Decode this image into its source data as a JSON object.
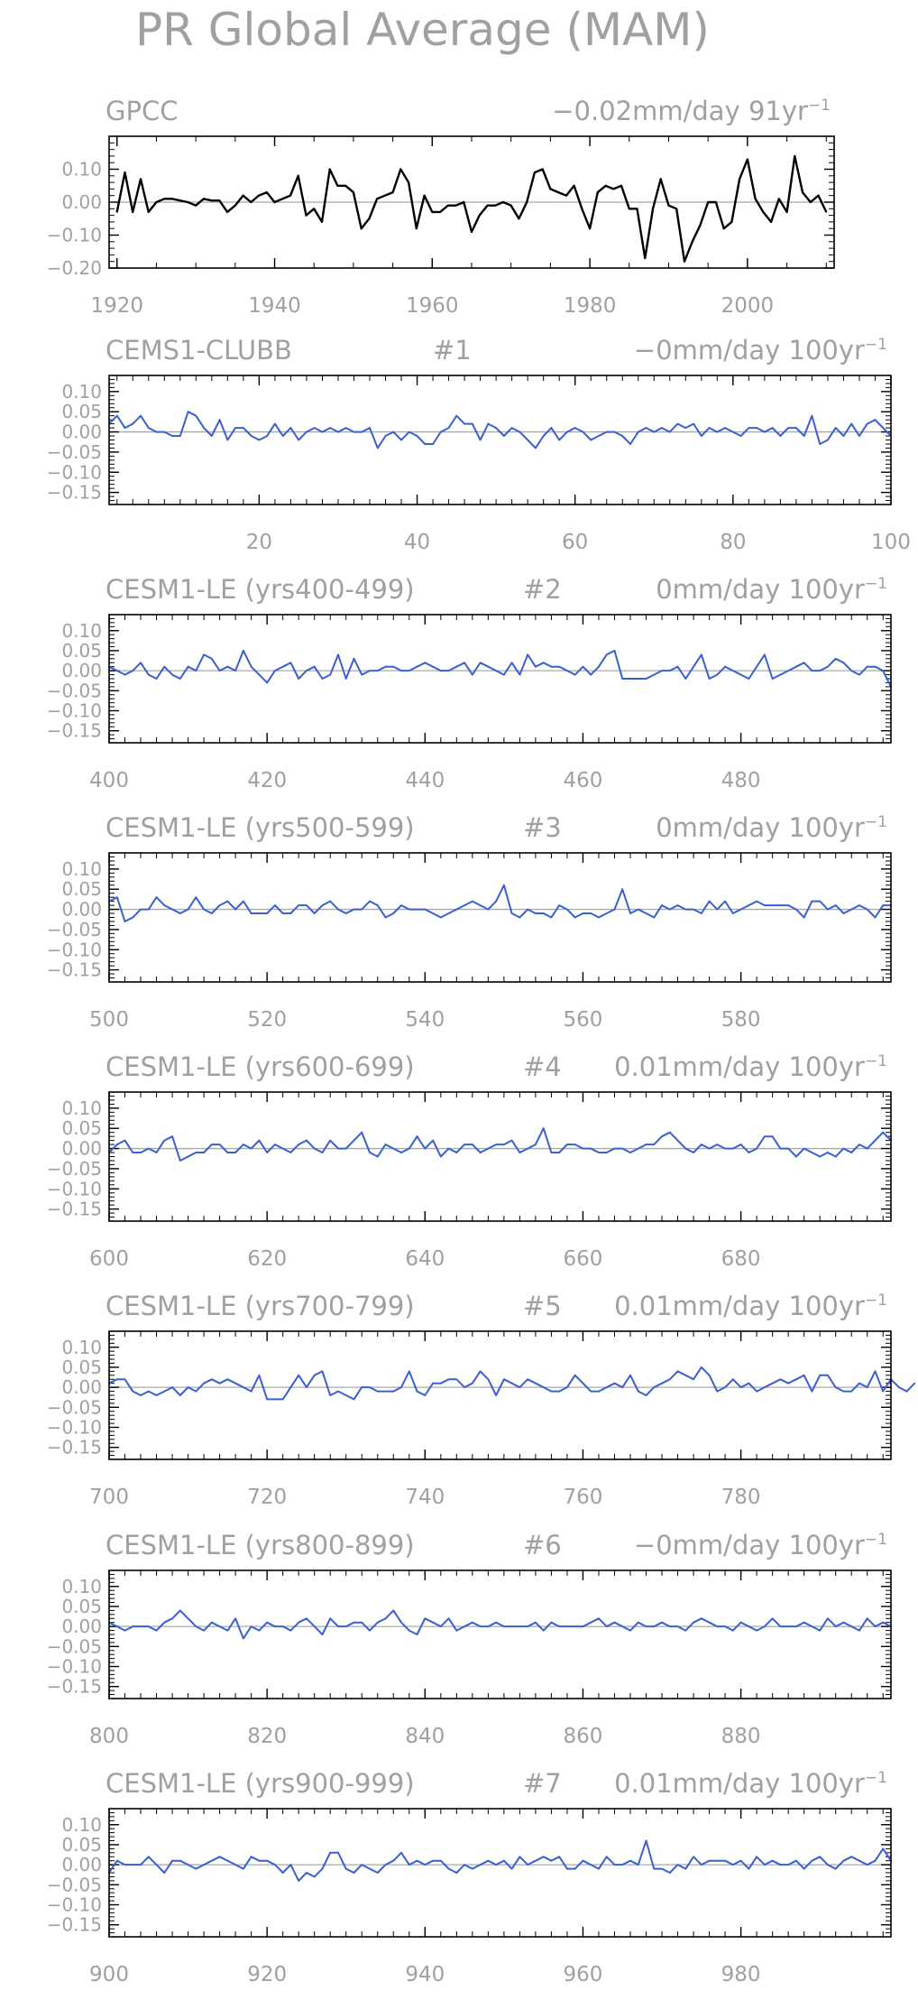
{
  "figure": {
    "title": "PR Global Average (MAM)"
  },
  "chart_data": [
    {
      "type": "line",
      "title": "GPCC",
      "trend": "−0.02mm/day 91yr",
      "trend_exp": "−1",
      "color": "#000000",
      "xlim": [
        1919,
        2011
      ],
      "ylim": [
        -0.2,
        0.2
      ],
      "yticks": [
        0.1,
        0.0,
        -0.1,
        -0.2
      ],
      "ytick_labels": [
        "0.10",
        "0.00",
        "−0.10",
        "−0.20"
      ],
      "xticks": [
        1920,
        1940,
        1960,
        1980,
        2000
      ],
      "xtick_labels": [
        "1920",
        "1940",
        "1960",
        "1980",
        "2000"
      ],
      "x_start": 1920,
      "values": [
        -0.03,
        0.09,
        -0.03,
        0.07,
        -0.03,
        0.0,
        0.01,
        0.01,
        0.005,
        0.0,
        -0.01,
        0.01,
        0.005,
        0.005,
        -0.03,
        -0.01,
        0.02,
        0.0,
        0.02,
        0.03,
        0.0,
        0.01,
        0.02,
        0.08,
        -0.04,
        -0.02,
        -0.06,
        0.1,
        0.05,
        0.05,
        0.03,
        -0.08,
        -0.05,
        0.01,
        0.02,
        0.03,
        0.1,
        0.06,
        -0.08,
        0.02,
        -0.03,
        -0.03,
        -0.01,
        -0.01,
        0.0,
        -0.09,
        -0.04,
        -0.01,
        -0.01,
        0.0,
        -0.01,
        -0.05,
        0.0,
        0.09,
        0.1,
        0.04,
        0.03,
        0.02,
        0.05,
        -0.02,
        -0.08,
        0.03,
        0.05,
        0.04,
        0.05,
        -0.02,
        -0.02,
        -0.17,
        -0.02,
        0.07,
        -0.01,
        -0.02,
        -0.18,
        -0.12,
        -0.07,
        0.0,
        0.0,
        -0.08,
        -0.06,
        0.07,
        0.13,
        0.01,
        -0.03,
        -0.06,
        0.01,
        -0.03,
        0.14,
        0.03,
        0.0,
        0.02,
        -0.03
      ]
    },
    {
      "type": "line",
      "title": "CEMS1-CLUBB",
      "run": "#1",
      "trend": "−0mm/day 100yr",
      "trend_exp": "−1",
      "color": "#3a5fd0",
      "xlim": [
        1,
        100
      ],
      "ylim": [
        -0.18,
        0.14
      ],
      "yticks": [
        0.1,
        0.05,
        0.0,
        -0.05,
        -0.1,
        -0.15
      ],
      "ytick_labels": [
        "0.10",
        "0.05",
        "0.00",
        "−0.05",
        "−0.10",
        "−0.15"
      ],
      "xticks": [
        20,
        40,
        60,
        80,
        100
      ],
      "xtick_labels": [
        "20",
        "40",
        "60",
        "80",
        "100"
      ],
      "x_start": 1,
      "values": [
        0.02,
        0.04,
        0.01,
        0.02,
        0.04,
        0.01,
        0.0,
        0.0,
        -0.01,
        -0.01,
        0.05,
        0.04,
        0.01,
        -0.01,
        0.03,
        -0.02,
        0.01,
        0.01,
        -0.01,
        -0.02,
        -0.01,
        0.02,
        -0.01,
        0.01,
        -0.02,
        0.0,
        0.01,
        0.0,
        0.01,
        0.0,
        0.01,
        0.0,
        0.0,
        0.01,
        -0.04,
        -0.01,
        0.0,
        -0.02,
        0.0,
        -0.01,
        -0.03,
        -0.03,
        0.0,
        0.01,
        0.04,
        0.02,
        0.02,
        -0.02,
        0.02,
        0.01,
        -0.01,
        0.01,
        0.0,
        -0.02,
        -0.04,
        -0.01,
        0.01,
        -0.02,
        0.0,
        0.01,
        0.0,
        -0.02,
        -0.01,
        0.0,
        0.0,
        -0.01,
        -0.03,
        0.0,
        0.01,
        0.0,
        0.01,
        0.0,
        0.02,
        0.01,
        0.02,
        -0.01,
        0.01,
        0.0,
        0.01,
        0.0,
        -0.01,
        0.01,
        0.01,
        0.0,
        0.01,
        -0.01,
        0.01,
        0.01,
        -0.01,
        0.04,
        -0.03,
        -0.02,
        0.01,
        -0.01,
        0.02,
        -0.01,
        0.02,
        0.03,
        0.01,
        -0.01
      ]
    },
    {
      "type": "line",
      "title": "CESM1-LE (yrs400-499)",
      "run": "#2",
      "trend": "0mm/day 100yr",
      "trend_exp": "−1",
      "color": "#3a5fd0",
      "xlim": [
        400,
        499
      ],
      "ylim": [
        -0.18,
        0.14
      ],
      "yticks": [
        0.1,
        0.05,
        0.0,
        -0.05,
        -0.1,
        -0.15
      ],
      "ytick_labels": [
        "0.10",
        "0.05",
        "0.00",
        "−0.05",
        "−0.10",
        "−0.15"
      ],
      "xticks": [
        400,
        420,
        440,
        460,
        480
      ],
      "xtick_labels": [
        "400",
        "420",
        "440",
        "460",
        "480"
      ],
      "x_start": 400,
      "values": [
        0.01,
        0.0,
        -0.01,
        0.0,
        0.02,
        -0.01,
        -0.02,
        0.01,
        -0.01,
        -0.02,
        0.01,
        0.0,
        0.04,
        0.03,
        0.0,
        0.01,
        0.0,
        0.05,
        0.01,
        -0.01,
        -0.03,
        0.0,
        0.01,
        0.02,
        -0.02,
        0.0,
        0.01,
        -0.02,
        -0.01,
        0.04,
        -0.02,
        0.03,
        -0.01,
        0.0,
        0.0,
        0.01,
        0.01,
        0.0,
        0.0,
        0.01,
        0.02,
        0.01,
        0.0,
        0.0,
        0.01,
        0.02,
        -0.01,
        0.02,
        0.01,
        0.0,
        -0.01,
        0.02,
        -0.01,
        0.04,
        0.01,
        0.02,
        0.01,
        0.01,
        0.0,
        -0.01,
        0.01,
        -0.01,
        0.01,
        0.04,
        0.05,
        -0.02,
        -0.02,
        -0.02,
        -0.02,
        -0.01,
        0.0,
        0.0,
        0.01,
        -0.02,
        0.01,
        0.04,
        -0.02,
        -0.01,
        0.01,
        0.0,
        -0.01,
        -0.02,
        0.01,
        0.04,
        -0.02,
        -0.01,
        0.0,
        0.01,
        0.02,
        0.0,
        0.0,
        0.01,
        0.03,
        0.02,
        0.0,
        -0.01,
        0.01,
        0.01,
        0.0,
        -0.04
      ]
    },
    {
      "type": "line",
      "title": "CESM1-LE (yrs500-599)",
      "run": "#3",
      "trend": "0mm/day 100yr",
      "trend_exp": "−1",
      "color": "#3a5fd0",
      "xlim": [
        500,
        599
      ],
      "ylim": [
        -0.18,
        0.14
      ],
      "yticks": [
        0.1,
        0.05,
        0.0,
        -0.05,
        -0.1,
        -0.15
      ],
      "ytick_labels": [
        "0.10",
        "0.05",
        "0.00",
        "−0.05",
        "−0.10",
        "−0.15"
      ],
      "xticks": [
        500,
        520,
        540,
        560,
        580
      ],
      "xtick_labels": [
        "500",
        "520",
        "540",
        "560",
        "580"
      ],
      "x_start": 500,
      "values": [
        0.02,
        0.03,
        -0.03,
        -0.02,
        0.0,
        0.0,
        0.03,
        0.01,
        0.0,
        -0.01,
        0.0,
        0.03,
        0.0,
        -0.01,
        0.01,
        0.02,
        0.0,
        0.02,
        -0.01,
        -0.01,
        -0.01,
        0.01,
        -0.01,
        -0.01,
        0.01,
        0.01,
        -0.01,
        0.01,
        0.02,
        0.0,
        -0.01,
        0.0,
        0.0,
        0.02,
        0.01,
        -0.02,
        -0.01,
        0.01,
        0.0,
        0.0,
        0.0,
        -0.01,
        -0.02,
        -0.01,
        0.0,
        0.01,
        0.02,
        0.01,
        0.0,
        0.02,
        0.06,
        -0.01,
        -0.02,
        0.0,
        -0.01,
        -0.01,
        -0.02,
        0.01,
        0.0,
        -0.02,
        -0.01,
        -0.01,
        -0.02,
        -0.01,
        0.0,
        0.05,
        -0.01,
        0.0,
        -0.01,
        -0.02,
        0.01,
        0.0,
        0.01,
        0.0,
        0.0,
        -0.01,
        0.02,
        0.0,
        0.02,
        -0.01,
        0.0,
        0.01,
        0.02,
        0.01,
        0.01,
        0.01,
        0.01,
        0.0,
        -0.02,
        0.02,
        0.02,
        0.0,
        0.01,
        -0.01,
        0.0,
        0.01,
        0.0,
        -0.02,
        0.01,
        0.01
      ]
    },
    {
      "type": "line",
      "title": "CESM1-LE (yrs600-699)",
      "run": "#4",
      "trend": "0.01mm/day 100yr",
      "trend_exp": "−1",
      "color": "#3a5fd0",
      "xlim": [
        600,
        699
      ],
      "ylim": [
        -0.18,
        0.14
      ],
      "yticks": [
        0.1,
        0.05,
        0.0,
        -0.05,
        -0.1,
        -0.15
      ],
      "ytick_labels": [
        "0.10",
        "0.05",
        "0.00",
        "−0.05",
        "−0.10",
        "−0.15"
      ],
      "xticks": [
        600,
        620,
        640,
        660,
        680
      ],
      "xtick_labels": [
        "600",
        "620",
        "640",
        "660",
        "680"
      ],
      "x_start": 600,
      "values": [
        -0.01,
        0.01,
        0.02,
        -0.01,
        -0.01,
        0.0,
        -0.01,
        0.02,
        0.03,
        -0.03,
        -0.02,
        -0.01,
        -0.01,
        0.01,
        0.01,
        -0.01,
        -0.01,
        0.01,
        0.0,
        0.02,
        -0.01,
        0.01,
        0.0,
        -0.01,
        0.01,
        0.02,
        0.0,
        -0.01,
        0.02,
        0.0,
        0.0,
        0.02,
        0.04,
        -0.01,
        -0.02,
        0.01,
        0.0,
        -0.01,
        0.0,
        0.03,
        0.0,
        0.02,
        -0.02,
        0.0,
        -0.01,
        0.01,
        0.01,
        -0.01,
        0.0,
        0.01,
        0.01,
        0.02,
        -0.01,
        0.0,
        0.01,
        0.05,
        -0.01,
        -0.01,
        0.01,
        0.01,
        0.0,
        0.0,
        -0.01,
        -0.01,
        0.0,
        0.0,
        -0.01,
        0.0,
        0.01,
        0.01,
        0.03,
        0.04,
        0.02,
        0.0,
        -0.01,
        0.01,
        0.0,
        0.01,
        0.0,
        0.0,
        0.01,
        -0.01,
        0.0,
        0.03,
        0.03,
        0.0,
        0.0,
        -0.02,
        0.0,
        -0.01,
        -0.02,
        -0.01,
        -0.02,
        0.0,
        -0.01,
        0.01,
        0.0,
        0.02,
        0.04,
        0.02
      ]
    },
    {
      "type": "line",
      "title": "CESM1-LE (yrs700-799)",
      "run": "#5",
      "trend": "0.01mm/day 100yr",
      "trend_exp": "−1",
      "color": "#3a5fd0",
      "xlim": [
        700,
        799
      ],
      "ylim": [
        -0.18,
        0.14
      ],
      "yticks": [
        0.1,
        0.05,
        0.0,
        -0.05,
        -0.1,
        -0.15
      ],
      "ytick_labels": [
        "0.10",
        "0.05",
        "0.00",
        "−0.05",
        "−0.10",
        "−0.15"
      ],
      "xticks": [
        700,
        720,
        740,
        760,
        780
      ],
      "xtick_labels": [
        "700",
        "720",
        "740",
        "760",
        "780"
      ],
      "x_start": 700,
      "values": [
        0.01,
        0.02,
        0.02,
        -0.01,
        -0.02,
        -0.01,
        -0.02,
        -0.01,
        0.0,
        -0.02,
        0.0,
        -0.01,
        0.01,
        0.02,
        0.01,
        0.02,
        0.01,
        0.0,
        -0.01,
        0.03,
        -0.03,
        -0.03,
        -0.03,
        0.0,
        0.03,
        0.0,
        0.03,
        0.04,
        -0.02,
        -0.01,
        -0.02,
        -0.03,
        0.0,
        0.0,
        -0.01,
        -0.01,
        -0.01,
        0.0,
        0.04,
        -0.01,
        -0.02,
        0.01,
        0.01,
        0.02,
        0.02,
        0.0,
        0.01,
        0.04,
        0.02,
        -0.02,
        0.02,
        0.01,
        0.0,
        0.02,
        0.01,
        0.0,
        -0.01,
        -0.01,
        0.0,
        0.03,
        0.01,
        -0.01,
        -0.01,
        0.0,
        0.01,
        0.0,
        0.03,
        -0.01,
        -0.02,
        0.0,
        0.01,
        0.02,
        0.04,
        0.03,
        0.02,
        0.05,
        0.03,
        -0.01,
        0.0,
        0.02,
        0.0,
        0.01,
        -0.01,
        0.0,
        0.01,
        0.02,
        0.01,
        0.02,
        0.03,
        -0.01,
        0.03,
        0.03,
        0.0,
        -0.01,
        -0.01,
        0.01,
        0.0,
        0.04,
        -0.01,
        0.02,
        0.0,
        -0.01,
        0.01
      ]
    },
    {
      "type": "line",
      "title": "CESM1-LE (yrs800-899)",
      "run": "#6",
      "trend": "−0mm/day 100yr",
      "trend_exp": "−1",
      "color": "#3a5fd0",
      "xlim": [
        800,
        899
      ],
      "ylim": [
        -0.18,
        0.14
      ],
      "yticks": [
        0.1,
        0.05,
        0.0,
        -0.05,
        -0.1,
        -0.15
      ],
      "ytick_labels": [
        "0.10",
        "0.05",
        "0.00",
        "−0.05",
        "−0.10",
        "−0.15"
      ],
      "xticks": [
        800,
        820,
        840,
        860,
        880
      ],
      "xtick_labels": [
        "800",
        "820",
        "840",
        "860",
        "880"
      ],
      "x_start": 800,
      "values": [
        0.01,
        0.0,
        -0.01,
        0.0,
        0.0,
        0.0,
        -0.01,
        0.01,
        0.02,
        0.04,
        0.02,
        0.0,
        -0.01,
        0.01,
        0.0,
        -0.01,
        0.02,
        -0.03,
        0.0,
        -0.01,
        0.01,
        0.0,
        0.0,
        -0.01,
        0.01,
        0.02,
        0.0,
        -0.02,
        0.02,
        0.0,
        0.0,
        0.01,
        0.01,
        -0.01,
        0.01,
        0.02,
        0.04,
        0.01,
        -0.01,
        -0.02,
        0.02,
        0.01,
        0.0,
        0.02,
        -0.01,
        0.0,
        0.01,
        0.0,
        0.0,
        0.01,
        0.0,
        0.0,
        0.0,
        0.0,
        0.01,
        -0.01,
        0.01,
        0.0,
        0.0,
        0.0,
        0.0,
        0.01,
        0.02,
        0.0,
        0.01,
        0.0,
        -0.01,
        0.01,
        0.0,
        0.0,
        0.01,
        0.0,
        0.0,
        -0.01,
        0.01,
        0.02,
        0.01,
        0.0,
        0.0,
        -0.01,
        0.01,
        0.0,
        -0.01,
        0.0,
        0.02,
        0.0,
        0.0,
        0.0,
        0.01,
        0.0,
        -0.01,
        0.02,
        0.0,
        0.01,
        0.0,
        -0.01,
        0.02,
        0.0,
        0.01,
        0.0
      ]
    },
    {
      "type": "line",
      "title": "CESM1-LE (yrs900-999)",
      "run": "#7",
      "trend": "0.01mm/day 100yr",
      "trend_exp": "−1",
      "color": "#3a5fd0",
      "xlim": [
        900,
        999
      ],
      "ylim": [
        -0.18,
        0.14
      ],
      "yticks": [
        0.1,
        0.05,
        0.0,
        -0.05,
        -0.1,
        -0.15
      ],
      "ytick_labels": [
        "0.10",
        "0.05",
        "0.00",
        "−0.05",
        "−0.10",
        "−0.15"
      ],
      "xticks": [
        900,
        920,
        940,
        960,
        980
      ],
      "xtick_labels": [
        "900",
        "920",
        "940",
        "960",
        "980"
      ],
      "x_start": 900,
      "values": [
        -0.02,
        0.01,
        0.0,
        0.0,
        0.0,
        0.02,
        0.0,
        -0.02,
        0.01,
        0.01,
        0.0,
        -0.01,
        0.0,
        0.01,
        0.02,
        0.01,
        0.0,
        -0.01,
        0.02,
        0.01,
        0.01,
        0.0,
        -0.02,
        0.0,
        -0.04,
        -0.02,
        -0.03,
        -0.01,
        0.03,
        0.03,
        -0.01,
        -0.02,
        0.0,
        -0.01,
        -0.02,
        0.0,
        0.01,
        0.03,
        0.0,
        0.01,
        0.0,
        0.01,
        0.01,
        -0.01,
        -0.02,
        0.0,
        -0.01,
        0.0,
        0.01,
        0.0,
        0.01,
        -0.01,
        0.02,
        0.0,
        0.01,
        0.02,
        0.01,
        0.02,
        -0.01,
        -0.01,
        0.01,
        0.0,
        -0.01,
        0.02,
        0.0,
        0.0,
        0.01,
        0.0,
        0.06,
        -0.01,
        -0.01,
        -0.02,
        0.0,
        -0.01,
        0.02,
        0.0,
        0.01,
        0.01,
        0.01,
        0.0,
        0.01,
        -0.01,
        0.02,
        0.0,
        0.01,
        0.0,
        0.0,
        0.01,
        -0.01,
        0.01,
        0.02,
        0.0,
        -0.01,
        0.01,
        0.02,
        0.01,
        0.0,
        0.01,
        0.04,
        0.01
      ]
    }
  ]
}
